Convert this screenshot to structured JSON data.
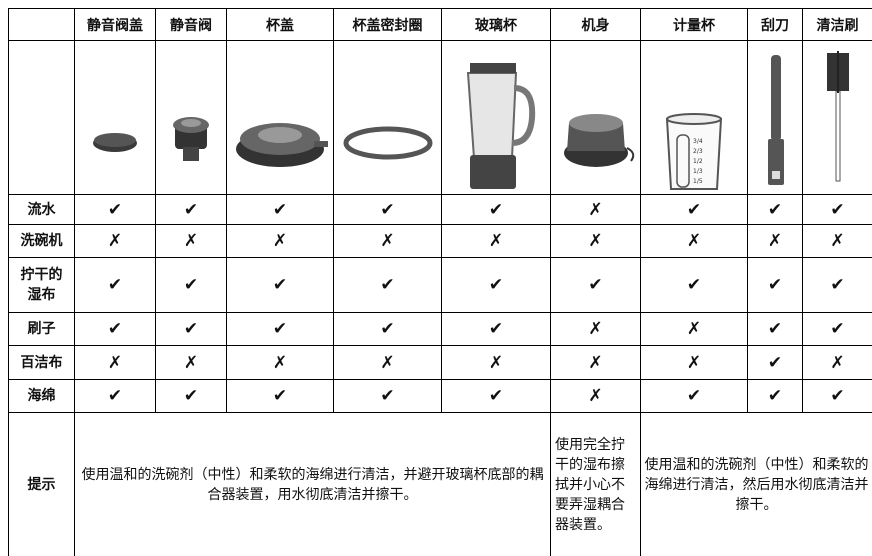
{
  "table": {
    "header": [
      "静音阀盖",
      "静音阀",
      "杯盖",
      "杯盖密封圈",
      "玻璃杯",
      "机身",
      "计量杯",
      "刮刀",
      "清洁刷"
    ],
    "rows": [
      {
        "name": "流水",
        "cells": [
          "✔",
          "✔",
          "✔",
          "✔",
          "✔",
          "✗",
          "✔",
          "✔",
          "✔"
        ]
      },
      {
        "name": "洗碗机",
        "cells": [
          "✗",
          "✗",
          "✗",
          "✗",
          "✗",
          "✗",
          "✗",
          "✗",
          "✗"
        ]
      },
      {
        "name": "拧干的湿布",
        "cells": [
          "✔",
          "✔",
          "✔",
          "✔",
          "✔",
          "✔",
          "✔",
          "✔",
          "✔"
        ]
      },
      {
        "name": "刷子",
        "cells": [
          "✔",
          "✔",
          "✔",
          "✔",
          "✔",
          "✗",
          "✗",
          "✔",
          "✔"
        ]
      },
      {
        "name": "百洁布",
        "cells": [
          "✗",
          "✗",
          "✗",
          "✗",
          "✗",
          "✗",
          "✗",
          "✔",
          "✗"
        ]
      },
      {
        "name": "海绵",
        "cells": [
          "✔",
          "✔",
          "✔",
          "✔",
          "✔",
          "✗",
          "✔",
          "✔",
          "✔"
        ]
      }
    ],
    "tips": {
      "name": "提示",
      "cells": [
        {
          "span": 5,
          "text": "使用温和的洗碗剂（中性）和柔软的海绵进行清洁，并避开玻璃杯底部的耦合器装置，用水彻底清洁并擦干。"
        },
        {
          "span": 1,
          "text": "使用完全拧干的湿布擦拭并小心不要弄湿耦合器装置。"
        },
        {
          "span": 3,
          "text": "使用温和的洗碗剂（中性）和柔软的海绵进行清洁，然后用水彻底清洁并擦干。"
        }
      ]
    },
    "cup_marks": [
      "3/4",
      "2/3",
      "1/2",
      "1/3",
      "1/5"
    ]
  }
}
